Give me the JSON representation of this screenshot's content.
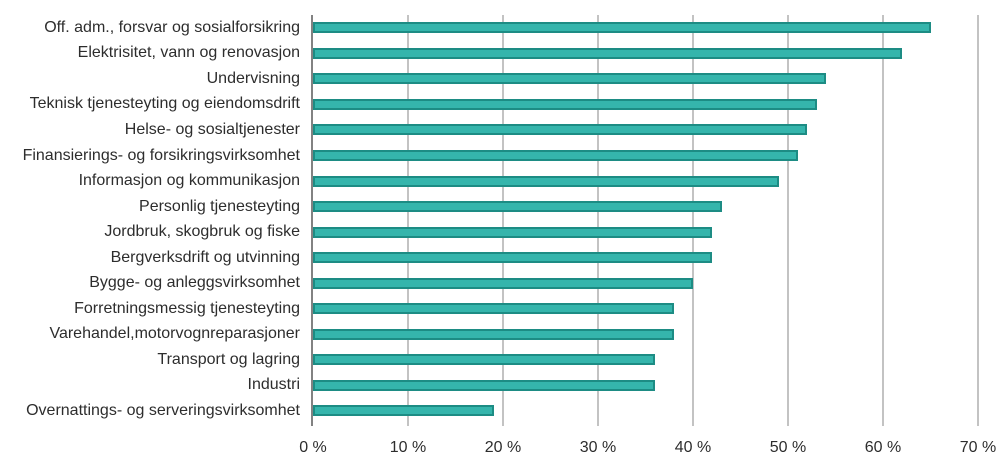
{
  "chart_data": {
    "type": "bar",
    "orientation": "horizontal",
    "title": "",
    "xlabel": "",
    "ylabel": "",
    "categories": [
      "Off. adm., forsvar og sosialforsikring",
      "Elektrisitet, vann og renovasjon",
      "Undervisning",
      "Teknisk tjenesteyting og eiendomsdrift",
      "Helse- og sosialtjenester",
      "Finansierings- og forsikringsvirksomhet",
      "Informasjon og kommunikasjon",
      "Personlig tjenesteyting",
      "Jordbruk, skogbruk og fiske",
      "Bergverksdrift og utvinning",
      "Bygge- og anleggsvirksomhet",
      "Forretningsmessig tjenesteyting",
      "Varehandel,motorvognreparasjoner",
      "Transport og lagring",
      "Industri",
      "Overnattings- og serveringsvirksomhet"
    ],
    "values": [
      65,
      62,
      54,
      53,
      52,
      51,
      49,
      43,
      42,
      42,
      40,
      38,
      38,
      36,
      36,
      19
    ],
    "value_unit": "%",
    "xlim": [
      0,
      70
    ],
    "x_tick_values": [
      0,
      10,
      20,
      30,
      40,
      50,
      60,
      70
    ],
    "x_tick_labels": [
      "0 %",
      "10 %",
      "20 %",
      "30 %",
      "40 %",
      "50 %",
      "60 %",
      "70 %"
    ],
    "grid": true,
    "legend": false,
    "colors": {
      "bar_fill": "#35b5ac",
      "bar_border": "#1d8c84",
      "gridline": "#c3c3c3",
      "axis_line": "#828282",
      "text": "#2d2d2d"
    }
  }
}
